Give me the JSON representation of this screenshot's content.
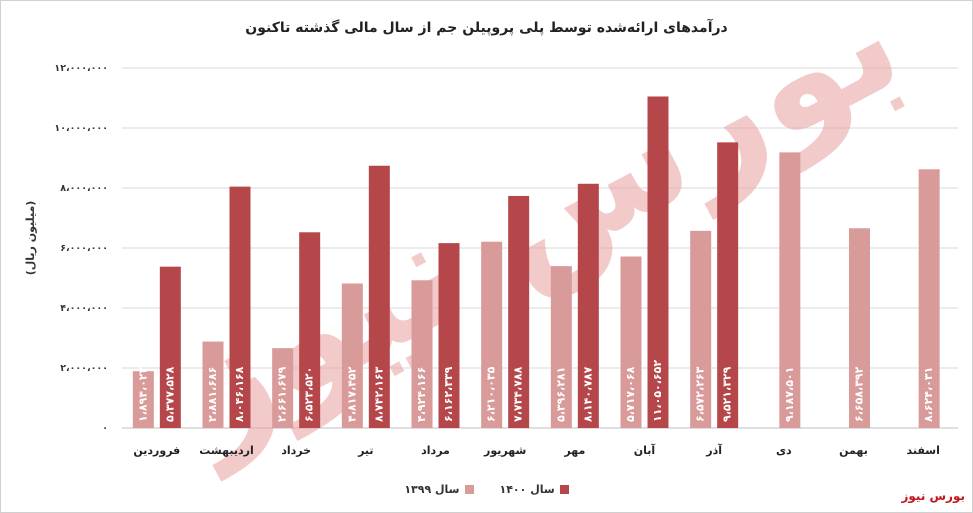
{
  "chart_data": {
    "type": "bar",
    "title": "درآمدهای ارائه‌شده توسط پلی پروپیلن جم از سال مالی گذشته تاکنون",
    "xlabel": "",
    "ylabel": "(میلیون ریال)",
    "ylim": [
      0,
      12000000
    ],
    "yticks": [
      0,
      2000000,
      4000000,
      6000000,
      8000000,
      10000000,
      12000000
    ],
    "ytick_labels": [
      "۰",
      "۲،۰۰۰،۰۰۰",
      "۴،۰۰۰،۰۰۰",
      "۶،۰۰۰،۰۰۰",
      "۸،۰۰۰،۰۰۰",
      "۱۰،۰۰۰،۰۰۰",
      "۱۲،۰۰۰،۰۰۰"
    ],
    "categories": [
      "فروردین",
      "اردیبهشت",
      "خرداد",
      "تیر",
      "مرداد",
      "شهریور",
      "مهر",
      "آبان",
      "آذر",
      "دی",
      "بهمن",
      "اسفند"
    ],
    "grid": true,
    "legend_position": "bottom",
    "series": [
      {
        "name": "سال ۱۳۹۹",
        "color": "#d99a9a",
        "values": [
          1894022,
          2881686,
          2661679,
          4817452,
          4924166,
          6210035,
          5396281,
          5717068,
          6572263,
          9187501,
          6658392,
          8624031
        ],
        "labels": [
          "۱،۸۹۴،۰۲۲",
          "۲،۸۸۱،۶۸۶",
          "۲،۶۶۱،۶۷۹",
          "۴،۸۱۷،۴۵۲",
          "۴،۹۲۴،۱۶۶",
          "۶،۲۱۰،۰۳۵",
          "۵،۳۹۶،۲۸۱",
          "۵،۷۱۷،۰۶۸",
          "۶،۵۷۲،۲۶۳",
          "۹،۱۸۷،۵۰۱",
          "۶،۶۵۸،۳۹۲",
          "۸،۶۲۴،۰۳۱"
        ]
      },
      {
        "name": "سال ۱۴۰۰",
        "color": "#b5474b",
        "values": [
          5377528,
          8046168,
          6523520,
          8742163,
          6162339,
          7734788,
          8140787,
          11050652,
          9521329,
          null,
          null,
          null
        ],
        "labels": [
          "۵،۳۷۷،۵۲۸",
          "۸،۰۴۶،۱۶۸",
          "۶،۵۲۳،۵۲۰",
          "۸،۷۴۲،۱۶۳",
          "۶،۱۶۲،۳۳۹",
          "۷،۷۳۴،۷۸۸",
          "۸،۱۴۰،۷۸۷",
          "۱۱،۰۵۰،۶۵۲",
          "۹،۵۲۱،۳۲۹",
          "",
          "",
          ""
        ]
      }
    ]
  },
  "legend": {
    "series_1399": "سال ۱۳۹۹",
    "series_1400": "سال ۱۴۰۰"
  },
  "source": {
    "label": "بورس نیوز",
    "color": "#c0171c"
  },
  "watermark": {
    "text": "بورس نیوز",
    "color": "#e8a0a0"
  }
}
